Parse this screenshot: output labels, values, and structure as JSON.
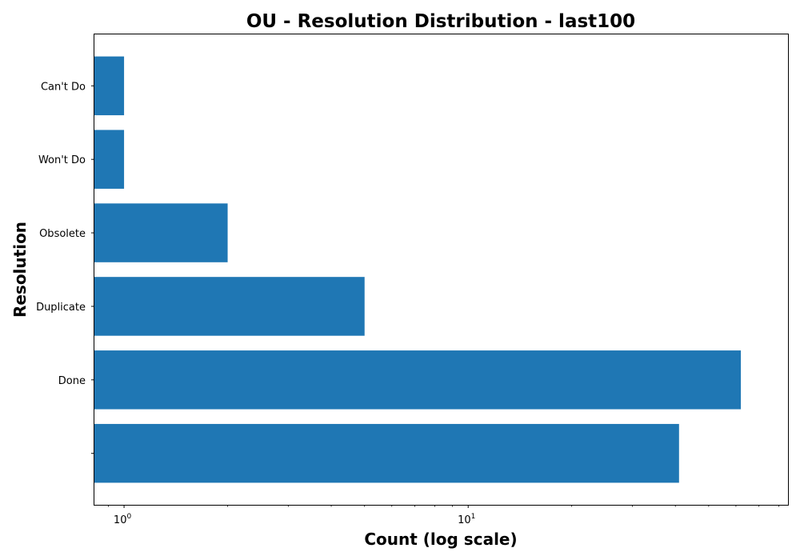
{
  "chart_data": {
    "type": "bar",
    "orientation": "horizontal",
    "title": "OU - Resolution Distribution - last100",
    "xlabel": "Count (log scale)",
    "ylabel": "Resolution",
    "x_scale": "log",
    "xlim": [
      0.82,
      85
    ],
    "categories": [
      "",
      "Done",
      "Duplicate",
      "Obsolete",
      "Won't Do",
      "Can't Do"
    ],
    "values": [
      41,
      62,
      5,
      2,
      1,
      1
    ],
    "bar_color": "#1f77b4",
    "x_major_ticks": [
      {
        "value": 1,
        "base": "10",
        "exponent": "0"
      },
      {
        "value": 10,
        "base": "10",
        "exponent": "1"
      }
    ],
    "grid": false,
    "legend": "none"
  }
}
